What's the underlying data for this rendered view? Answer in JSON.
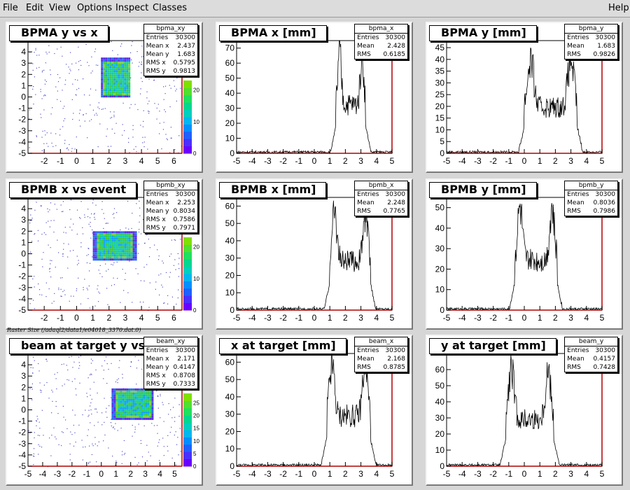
{
  "menu": {
    "file": "File",
    "edit": "Edit",
    "view": "View",
    "options": "Options",
    "inspect": "Inspect",
    "classes": "Classes",
    "help": "Help"
  },
  "raster_label": "Raster Size (/adaql2/data1/e04018_3370.dat.0)",
  "colors": {
    "frame_red": "#b00000",
    "canvas_bg": "#d6d6d6"
  },
  "pads": [
    {
      "kind": "2d",
      "title": "BPMA y vs x",
      "stats_name": "bpma_xy",
      "stats": [
        [
          "Entries",
          "30300"
        ],
        [
          "Mean x",
          "2.437"
        ],
        [
          "Mean y",
          "1.683"
        ],
        [
          "RMS x",
          "0.5795"
        ],
        [
          "RMS y",
          "0.9813"
        ]
      ],
      "chart_data": {
        "type": "heatmap",
        "xlim": [
          -3,
          6.5
        ],
        "ylim": [
          -5,
          5
        ],
        "xticks": [
          -2,
          -1,
          0,
          1,
          2,
          3,
          4,
          5,
          6
        ],
        "yticks": [
          -5,
          -4,
          -3,
          -2,
          -1,
          0,
          1,
          2,
          3,
          4
        ],
        "zticks": [
          0,
          10,
          20
        ],
        "core_x": [
          1.5,
          3.3
        ],
        "core_y": [
          0,
          3.5
        ]
      }
    },
    {
      "kind": "1d",
      "title": "BPMA x [mm]",
      "stats_name": "bpma_x",
      "stats": [
        [
          "Entries",
          "30300"
        ],
        [
          "Mean",
          "2.428"
        ],
        [
          "RMS",
          "0.6185"
        ]
      ],
      "chart_data": {
        "type": "bar",
        "xlim": [
          -5,
          5
        ],
        "ylim": [
          0,
          75
        ],
        "xticks": [
          -5,
          -4,
          -3,
          -2,
          -1,
          0,
          1,
          2,
          3,
          4,
          5
        ],
        "yticks": [
          0,
          10,
          20,
          30,
          40,
          50,
          60,
          70
        ],
        "plateau": [
          1.4,
          3.3
        ],
        "peak": 70
      }
    },
    {
      "kind": "1d",
      "title": "BPMA y [mm]",
      "stats_name": "bpma_y",
      "stats": [
        [
          "Entries",
          "30300"
        ],
        [
          "Mean",
          "1.683"
        ],
        [
          "RMS",
          "0.9826"
        ]
      ],
      "chart_data": {
        "type": "bar",
        "xlim": [
          -5,
          5
        ],
        "ylim": [
          0,
          48
        ],
        "xticks": [
          -5,
          -4,
          -3,
          -2,
          -1,
          0,
          1,
          2,
          3,
          4,
          5
        ],
        "yticks": [
          0,
          5,
          10,
          15,
          20,
          25,
          30,
          35,
          40,
          45
        ],
        "plateau": [
          0,
          3.4
        ],
        "peak": 42
      }
    },
    {
      "kind": "2d",
      "title": "BPMB x vs event",
      "stats_name": "bpmb_xy",
      "stats": [
        [
          "Entries",
          "30300"
        ],
        [
          "Mean x",
          "2.253"
        ],
        [
          "Mean y",
          "0.8034"
        ],
        [
          "RMS x",
          "0.7586"
        ],
        [
          "RMS y",
          "0.7971"
        ]
      ],
      "chart_data": {
        "type": "heatmap",
        "xlim": [
          -3,
          6.5
        ],
        "ylim": [
          -5,
          5
        ],
        "xticks": [
          -2,
          -1,
          0,
          1,
          2,
          3,
          4,
          5,
          6
        ],
        "yticks": [
          -5,
          -4,
          -3,
          -2,
          -1,
          0,
          1,
          2,
          3,
          4
        ],
        "zticks": [
          0,
          10,
          20
        ],
        "core_x": [
          1.0,
          3.6
        ],
        "core_y": [
          -0.5,
          2.0
        ]
      }
    },
    {
      "kind": "1d",
      "title": "BPMB x [mm]",
      "stats_name": "bpmb_x",
      "stats": [
        [
          "Entries",
          "30300"
        ],
        [
          "Mean",
          "2.248"
        ],
        [
          "RMS",
          "0.7765"
        ]
      ],
      "chart_data": {
        "type": "bar",
        "xlim": [
          -5,
          5
        ],
        "ylim": [
          0,
          65
        ],
        "xticks": [
          -5,
          -4,
          -3,
          -2,
          -1,
          0,
          1,
          2,
          3,
          4,
          5
        ],
        "yticks": [
          0,
          10,
          20,
          30,
          40,
          50,
          60
        ],
        "plateau": [
          1.0,
          3.6
        ],
        "peak": 60
      }
    },
    {
      "kind": "1d",
      "title": "BPMB y [mm]",
      "stats_name": "bpmb_y",
      "stats": [
        [
          "Entries",
          "30300"
        ],
        [
          "Mean",
          "0.8036"
        ],
        [
          "RMS",
          "0.7986"
        ]
      ],
      "chart_data": {
        "type": "bar",
        "xlim": [
          -5,
          5
        ],
        "ylim": [
          0,
          55
        ],
        "xticks": [
          -5,
          -4,
          -3,
          -2,
          -1,
          0,
          1,
          2,
          3,
          4,
          5
        ],
        "yticks": [
          0,
          10,
          20,
          30,
          40,
          50
        ],
        "plateau": [
          -0.6,
          2.1
        ],
        "peak": 52
      }
    },
    {
      "kind": "2d",
      "title": "beam at target y vs x",
      "stats_name": "beam_xy",
      "stats": [
        [
          "Entries",
          "30300"
        ],
        [
          "Mean x",
          "2.171"
        ],
        [
          "Mean y",
          "0.4147"
        ],
        [
          "RMS x",
          "0.8708"
        ],
        [
          "RMS y",
          "0.7333"
        ]
      ],
      "chart_data": {
        "type": "heatmap",
        "xlim": [
          -5,
          5.5
        ],
        "ylim": [
          -5,
          5
        ],
        "xticks": [
          -5,
          -4,
          -3,
          -2,
          -1,
          0,
          1,
          2,
          3,
          4,
          5
        ],
        "yticks": [
          -5,
          -4,
          -3,
          -2,
          -1,
          0,
          1,
          2,
          3,
          4
        ],
        "zticks": [
          0,
          5,
          10,
          15,
          20,
          25
        ],
        "core_x": [
          0.7,
          3.5
        ],
        "core_y": [
          -0.8,
          1.9
        ]
      }
    },
    {
      "kind": "1d",
      "title": "x at target [mm]",
      "stats_name": "beam_x",
      "stats": [
        [
          "Entries",
          "30300"
        ],
        [
          "Mean",
          "2.168"
        ],
        [
          "RMS",
          "0.8785"
        ]
      ],
      "chart_data": {
        "type": "bar",
        "xlim": [
          -5,
          5
        ],
        "ylim": [
          0,
          65
        ],
        "xticks": [
          -5,
          -4,
          -3,
          -2,
          -1,
          0,
          1,
          2,
          3,
          4,
          5
        ],
        "yticks": [
          0,
          10,
          20,
          30,
          40,
          50,
          60
        ],
        "plateau": [
          0.8,
          3.6
        ],
        "peak": 62
      }
    },
    {
      "kind": "1d",
      "title": "y at target [mm]",
      "stats_name": "beam_y",
      "stats": [
        [
          "Entries",
          "30300"
        ],
        [
          "Mean",
          "0.4157"
        ],
        [
          "RMS",
          "0.7428"
        ]
      ],
      "chart_data": {
        "type": "bar",
        "xlim": [
          -5,
          5
        ],
        "ylim": [
          0,
          70
        ],
        "xticks": [
          -5,
          -4,
          -3,
          -2,
          -1,
          0,
          1,
          2,
          3,
          4,
          5
        ],
        "yticks": [
          0,
          10,
          20,
          30,
          40,
          50,
          60
        ],
        "plateau": [
          -1.2,
          1.9
        ],
        "peak": 62
      }
    }
  ]
}
